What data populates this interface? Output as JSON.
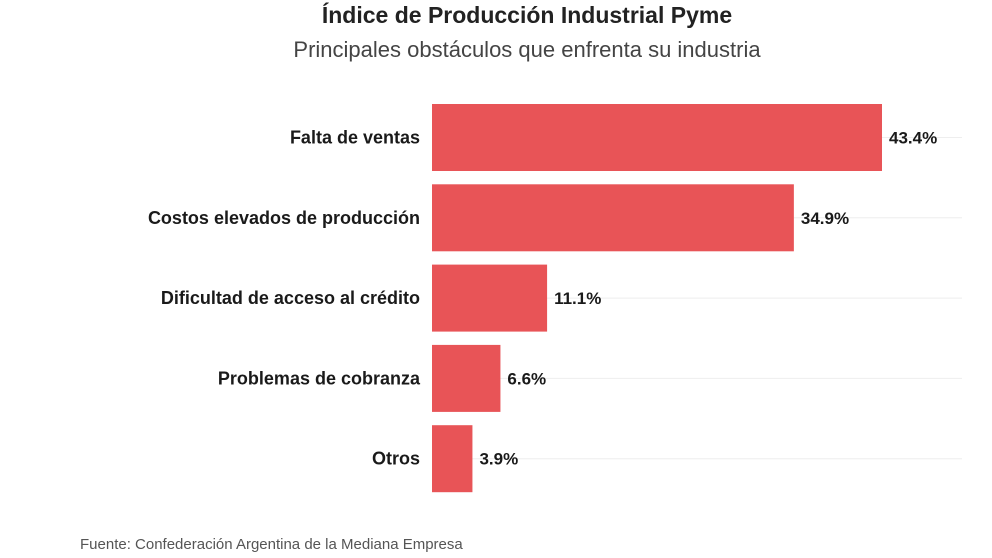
{
  "chart_data": {
    "type": "bar",
    "orientation": "horizontal",
    "title": "Índice de Producción Industrial Pyme",
    "subtitle": "Principales obstáculos que enfrenta su industria",
    "categories": [
      "Falta de ventas",
      "Costos elevados de producción",
      "Dificultad de acceso al crédito",
      "Problemas de cobranza",
      "Otros"
    ],
    "values": [
      43.4,
      34.9,
      11.1,
      6.6,
      3.9
    ],
    "value_labels": [
      "43.4%",
      "34.9%",
      "11.1%",
      "6.6%",
      "3.9%"
    ],
    "xlim": [
      0,
      50
    ],
    "xlabel": "",
    "ylabel": "",
    "grid": true,
    "bar_color": "#e85457",
    "source": "Fuente: Confederación Argentina de la Mediana Empresa"
  }
}
